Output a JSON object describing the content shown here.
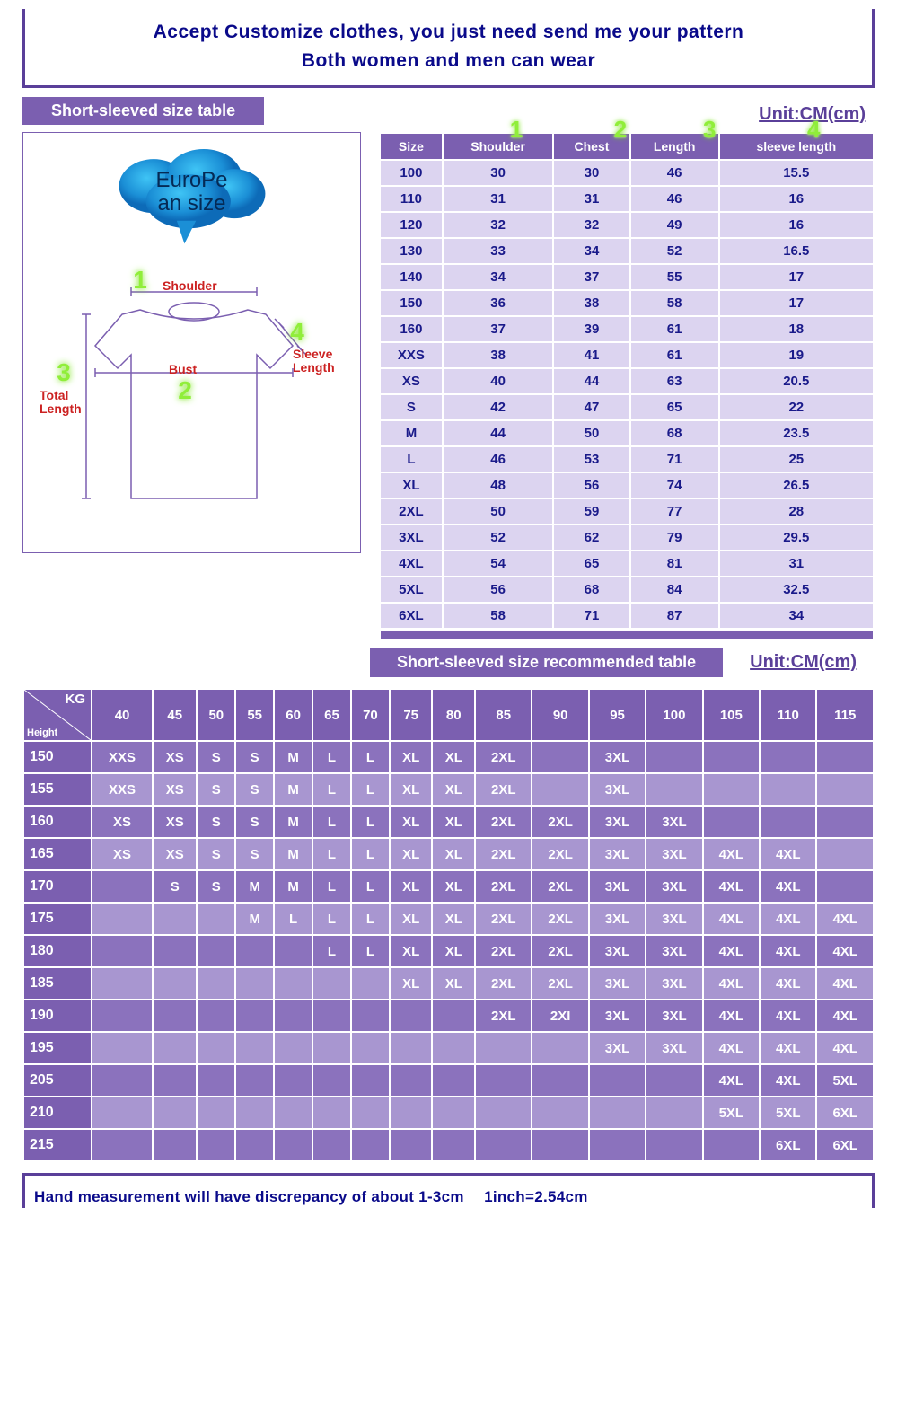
{
  "header": {
    "line1": "Accept Customize clothes, you just need send me your pattern",
    "line2": "Both women and men can wear"
  },
  "cloud_text": "EuroPe\nan size",
  "size_table": {
    "title": "Short-sleeved size  table",
    "unit": "Unit:CM(cm)",
    "columns": [
      "Size",
      "Shoulder",
      "Chest",
      "Length",
      "sleeve length"
    ],
    "badge_positions_pct": [
      25,
      46,
      64,
      85
    ],
    "rows": [
      [
        "100",
        "30",
        "30",
        "46",
        "15.5"
      ],
      [
        "110",
        "31",
        "31",
        "46",
        "16"
      ],
      [
        "120",
        "32",
        "32",
        "49",
        "16"
      ],
      [
        "130",
        "33",
        "34",
        "52",
        "16.5"
      ],
      [
        "140",
        "34",
        "37",
        "55",
        "17"
      ],
      [
        "150",
        "36",
        "38",
        "58",
        "17"
      ],
      [
        "160",
        "37",
        "39",
        "61",
        "18"
      ],
      [
        "XXS",
        "38",
        "41",
        "61",
        "19"
      ],
      [
        "XS",
        "40",
        "44",
        "63",
        "20.5"
      ],
      [
        "S",
        "42",
        "47",
        "65",
        "22"
      ],
      [
        "M",
        "44",
        "50",
        "68",
        "23.5"
      ],
      [
        "L",
        "46",
        "53",
        "71",
        "25"
      ],
      [
        "XL",
        "48",
        "56",
        "74",
        "26.5"
      ],
      [
        "2XL",
        "50",
        "59",
        "77",
        "28"
      ],
      [
        "3XL",
        "52",
        "62",
        "79",
        "29.5"
      ],
      [
        "4XL",
        "54",
        "65",
        "81",
        "31"
      ],
      [
        "5XL",
        "56",
        "68",
        "84",
        "32.5"
      ],
      [
        "6XL",
        "58",
        "71",
        "87",
        "34"
      ]
    ]
  },
  "diagram": {
    "labels": {
      "shoulder": "Shoulder",
      "bust": "Bust",
      "total": "Total\nLength",
      "sleeve": "Sleeve\nLength"
    },
    "badges": [
      "1",
      "2",
      "3",
      "4"
    ]
  },
  "rec_table": {
    "title": "Short-sleeved size recommended table",
    "unit": "Unit:CM(cm)",
    "corner_kg": "KG",
    "corner_h": "Height",
    "weights": [
      "40",
      "45",
      "50",
      "55",
      "60",
      "65",
      "70",
      "75",
      "80",
      "85",
      "90",
      "95",
      "100",
      "105",
      "110",
      "115"
    ],
    "heights": [
      "150",
      "155",
      "160",
      "165",
      "170",
      "175",
      "180",
      "185",
      "190",
      "195",
      "205",
      "210",
      "215"
    ],
    "cells": [
      [
        "XXS",
        "XS",
        "S",
        "S",
        "M",
        "L",
        "L",
        "XL",
        "XL",
        "2XL",
        "",
        "3XL",
        "",
        "",
        "",
        ""
      ],
      [
        "XXS",
        "XS",
        "S",
        "S",
        "M",
        "L",
        "L",
        "XL",
        "XL",
        "2XL",
        "",
        "3XL",
        "",
        "",
        "",
        ""
      ],
      [
        "XS",
        "XS",
        "S",
        "S",
        "M",
        "L",
        "L",
        "XL",
        "XL",
        "2XL",
        "2XL",
        "3XL",
        "3XL",
        "",
        "",
        ""
      ],
      [
        "XS",
        "XS",
        "S",
        "S",
        "M",
        "L",
        "L",
        "XL",
        "XL",
        "2XL",
        "2XL",
        "3XL",
        "3XL",
        "4XL",
        "4XL",
        ""
      ],
      [
        "",
        "S",
        "S",
        "M",
        "M",
        "L",
        "L",
        "XL",
        "XL",
        "2XL",
        "2XL",
        "3XL",
        "3XL",
        "4XL",
        "4XL",
        ""
      ],
      [
        "",
        "",
        "",
        "M",
        "L",
        "L",
        "L",
        "XL",
        "XL",
        "2XL",
        "2XL",
        "3XL",
        "3XL",
        "4XL",
        "4XL",
        "4XL"
      ],
      [
        "",
        "",
        "",
        "",
        "",
        "L",
        "L",
        "XL",
        "XL",
        "2XL",
        "2XL",
        "3XL",
        "3XL",
        "4XL",
        "4XL",
        "4XL"
      ],
      [
        "",
        "",
        "",
        "",
        "",
        "",
        "",
        "XL",
        "XL",
        "2XL",
        "2XL",
        "3XL",
        "3XL",
        "4XL",
        "4XL",
        "4XL"
      ],
      [
        "",
        "",
        "",
        "",
        "",
        "",
        "",
        "",
        "",
        "2XL",
        "2XI",
        "3XL",
        "3XL",
        "4XL",
        "4XL",
        "4XL"
      ],
      [
        "",
        "",
        "",
        "",
        "",
        "",
        "",
        "",
        "",
        "",
        "",
        "3XL",
        "3XL",
        "4XL",
        "4XL",
        "4XL"
      ],
      [
        "",
        "",
        "",
        "",
        "",
        "",
        "",
        "",
        "",
        "",
        "",
        "",
        "",
        "4XL",
        "4XL",
        "5XL"
      ],
      [
        "",
        "",
        "",
        "",
        "",
        "",
        "",
        "",
        "",
        "",
        "",
        "",
        "",
        "5XL",
        "5XL",
        "6XL"
      ],
      [
        "",
        "",
        "",
        "",
        "",
        "",
        "",
        "",
        "",
        "",
        "",
        "",
        "",
        "",
        "6XL",
        "6XL"
      ]
    ]
  },
  "footer": {
    "text": "Hand measurement will have discrepancy of about  1-3cm",
    "inch": "1inch=2.54cm"
  },
  "colors": {
    "primary": "#7b5fb0",
    "cell": "#dcd4f0",
    "text_blue": "#0a0a8a",
    "badge_green": "#90ee3a",
    "cloud1": "#1fa8e8",
    "cloud2": "#0d6bb8"
  }
}
